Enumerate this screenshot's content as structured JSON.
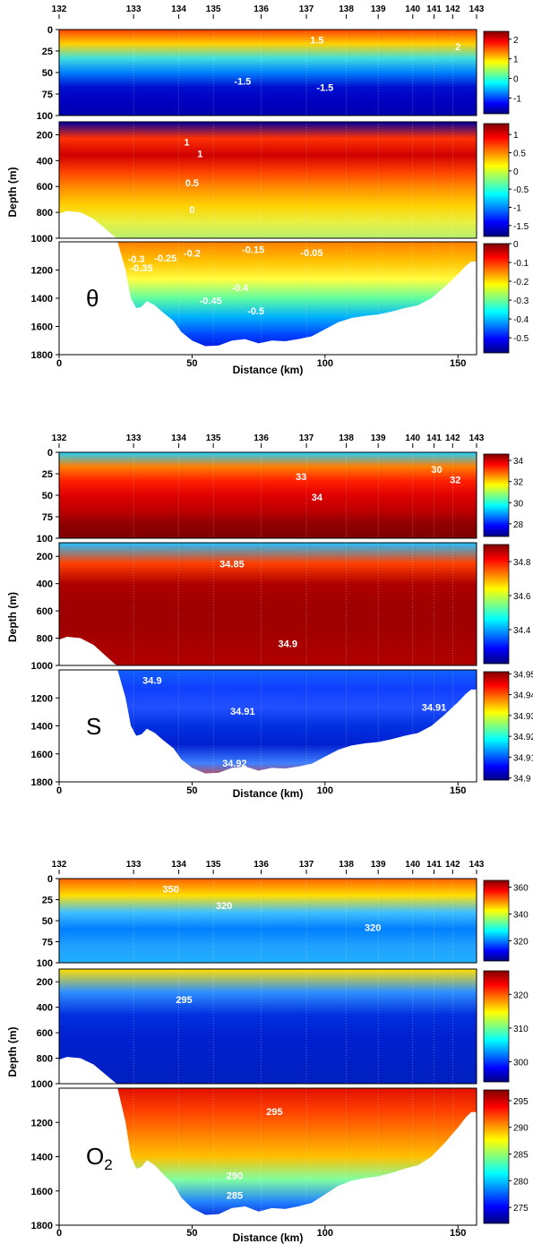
{
  "chart_data": [
    {
      "type": "heatmap",
      "variable": "θ",
      "xlabel": "Distance (km)",
      "ylabel": "Depth (m)",
      "xlim": [
        0,
        157
      ],
      "x_ticks": [
        "0",
        "50",
        "100",
        "150"
      ],
      "station_labels": [
        "132",
        "133",
        "134",
        "135",
        "136",
        "137",
        "138",
        "139",
        "140",
        "141",
        "142",
        "143"
      ],
      "station_km": [
        0,
        28,
        45,
        58,
        76,
        93,
        108,
        120,
        133,
        141,
        148,
        157
      ],
      "panels": [
        {
          "ylim": [
            0,
            100
          ],
          "y_ticks": [
            "0",
            "25",
            "50",
            "75",
            "100"
          ],
          "colorbar_ticks": [
            "2",
            "1",
            "0",
            "-1"
          ],
          "colorbar_range": [
            -1.8,
            2.4
          ],
          "contour_labels": [
            {
              "text": "1.5",
              "x": 97,
              "y": 12
            },
            {
              "text": "2",
              "x": 150,
              "y": 20
            },
            {
              "text": "-1.5",
              "x": 69,
              "y": 60
            },
            {
              "text": "-1.5",
              "x": 100,
              "y": 67
            }
          ]
        },
        {
          "ylim": [
            100,
            1000
          ],
          "y_ticks": [
            "200",
            "400",
            "600",
            "800",
            "1000"
          ],
          "colorbar_ticks": [
            "1",
            "0.5",
            "0",
            "-0.5",
            "-1",
            "-1.5"
          ],
          "colorbar_range": [
            -1.8,
            1.3
          ],
          "contour_labels": [
            {
              "text": "1",
              "x": 48,
              "y": 255
            },
            {
              "text": "1",
              "x": 53,
              "y": 345
            },
            {
              "text": "0.5",
              "x": 50,
              "y": 570
            },
            {
              "text": "0",
              "x": 50,
              "y": 780
            }
          ]
        },
        {
          "ylim": [
            1000,
            1800
          ],
          "y_ticks": [
            "1200",
            "1400",
            "1600",
            "1800"
          ],
          "colorbar_ticks": [
            "0",
            "-0.1",
            "-0.2",
            "-0.3",
            "-0.4",
            "-0.5"
          ],
          "colorbar_range": [
            -0.58,
            0.0
          ],
          "contour_labels": [
            {
              "text": "-0.05",
              "x": 95,
              "y": 1075
            },
            {
              "text": "-0.15",
              "x": 73,
              "y": 1055
            },
            {
              "text": "-0.2",
              "x": 50,
              "y": 1080
            },
            {
              "text": "-0.25",
              "x": 40,
              "y": 1115
            },
            {
              "text": "-0.3",
              "x": 29,
              "y": 1120
            },
            {
              "text": "-0.35",
              "x": 31,
              "y": 1185
            },
            {
              "text": "-0.4",
              "x": 68,
              "y": 1325
            },
            {
              "text": "-0.45",
              "x": 57,
              "y": 1415
            },
            {
              "text": "-0.5",
              "x": 74,
              "y": 1490
            }
          ]
        }
      ]
    },
    {
      "type": "heatmap",
      "variable": "S",
      "xlabel": "Distance (km)",
      "ylabel": "Depth (m)",
      "xlim": [
        0,
        157
      ],
      "x_ticks": [
        "0",
        "50",
        "100",
        "150"
      ],
      "station_labels": [
        "132",
        "133",
        "134",
        "135",
        "136",
        "137",
        "138",
        "139",
        "140",
        "141",
        "142",
        "143"
      ],
      "station_km": [
        0,
        28,
        45,
        58,
        76,
        93,
        108,
        120,
        133,
        141,
        148,
        157
      ],
      "panels": [
        {
          "ylim": [
            0,
            100
          ],
          "y_ticks": [
            "0",
            "25",
            "50",
            "75",
            "100"
          ],
          "colorbar_ticks": [
            "34",
            "32",
            "30",
            "28"
          ],
          "colorbar_range": [
            26.8,
            34.6
          ],
          "contour_labels": [
            {
              "text": "33",
              "x": 91,
              "y": 28
            },
            {
              "text": "30",
              "x": 142,
              "y": 20
            },
            {
              "text": "32",
              "x": 149,
              "y": 32
            },
            {
              "text": "34",
              "x": 97,
              "y": 52
            }
          ]
        },
        {
          "ylim": [
            100,
            1000
          ],
          "y_ticks": [
            "200",
            "400",
            "600",
            "800",
            "1000"
          ],
          "colorbar_ticks": [
            "34.8",
            "34.6",
            "34.4"
          ],
          "colorbar_range": [
            34.2,
            34.9
          ],
          "contour_labels": [
            {
              "text": "34.85",
              "x": 65,
              "y": 255
            },
            {
              "text": "34.9",
              "x": 86,
              "y": 840
            }
          ]
        },
        {
          "ylim": [
            1000,
            1800
          ],
          "y_ticks": [
            "1200",
            "1400",
            "1600",
            "1800"
          ],
          "colorbar_ticks": [
            "34.95",
            "34.94",
            "34.93",
            "34.92",
            "34.91",
            "34.9"
          ],
          "colorbar_range": [
            34.899,
            34.951
          ],
          "contour_labels": [
            {
              "text": "34.9",
              "x": 35,
              "y": 1075
            },
            {
              "text": "34.91",
              "x": 69,
              "y": 1295
            },
            {
              "text": "34.91",
              "x": 141,
              "y": 1265
            },
            {
              "text": "34.92",
              "x": 66,
              "y": 1665
            }
          ]
        }
      ]
    },
    {
      "type": "heatmap",
      "variable": "O",
      "variable_sub": "2",
      "xlabel": "Distance (km)",
      "ylabel": "Depth (m)",
      "xlim": [
        0,
        157
      ],
      "x_ticks": [
        "0",
        "50",
        "100",
        "150"
      ],
      "station_labels": [
        "132",
        "133",
        "134",
        "135",
        "136",
        "137",
        "138",
        "139",
        "140",
        "141",
        "142",
        "143"
      ],
      "station_km": [
        0,
        28,
        45,
        58,
        76,
        93,
        108,
        120,
        133,
        141,
        148,
        157
      ],
      "panels": [
        {
          "ylim": [
            0,
            100
          ],
          "y_ticks": [
            "0",
            "25",
            "50",
            "75",
            "100"
          ],
          "colorbar_ticks": [
            "360",
            "340",
            "320"
          ],
          "colorbar_range": [
            305,
            365
          ],
          "contour_labels": [
            {
              "text": "350",
              "x": 42,
              "y": 12
            },
            {
              "text": "320",
              "x": 62,
              "y": 32
            },
            {
              "text": "320",
              "x": 118,
              "y": 58
            }
          ]
        },
        {
          "ylim": [
            100,
            1000
          ],
          "y_ticks": [
            "200",
            "400",
            "600",
            "800",
            "1000"
          ],
          "colorbar_ticks": [
            "320",
            "310",
            "300"
          ],
          "colorbar_range": [
            294,
            327
          ],
          "contour_labels": [
            {
              "text": "295",
              "x": 47,
              "y": 340
            }
          ]
        },
        {
          "ylim": [
            1000,
            1800
          ],
          "y_ticks": [
            "1200",
            "1400",
            "1600",
            "1800"
          ],
          "colorbar_ticks": [
            "295",
            "290",
            "285",
            "280",
            "275"
          ],
          "colorbar_range": [
            272,
            297
          ],
          "contour_labels": [
            {
              "text": "295",
              "x": 81,
              "y": 1135
            },
            {
              "text": "290",
              "x": 66,
              "y": 1510
            },
            {
              "text": "285",
              "x": 66,
              "y": 1625
            }
          ]
        }
      ]
    }
  ]
}
